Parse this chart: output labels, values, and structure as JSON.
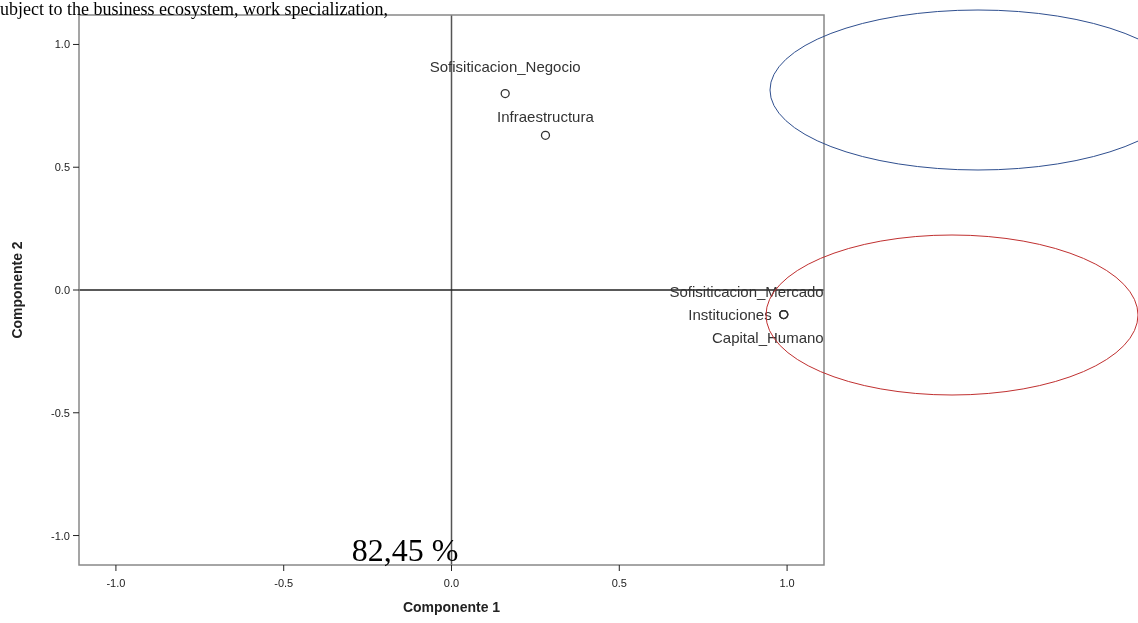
{
  "chart_data": {
    "type": "scatter",
    "xlabel": "Componente 1",
    "ylabel": "Componente 2",
    "xlim": [
      -1.11,
      1.11
    ],
    "ylim": [
      -1.12,
      1.12
    ],
    "xticks": [
      {
        "value": -1,
        "label": "-1.0"
      },
      {
        "value": -0.5,
        "label": "-0.5"
      },
      {
        "value": 0,
        "label": "0.0"
      },
      {
        "value": 0.5,
        "label": "0.5"
      },
      {
        "value": 1,
        "label": "1.0"
      }
    ],
    "yticks": [
      {
        "value": -1,
        "label": "-1.0"
      },
      {
        "value": -0.5,
        "label": "-0.5"
      },
      {
        "value": 0,
        "label": "0.0"
      },
      {
        "value": 0.5,
        "label": "0.5"
      },
      {
        "value": 1,
        "label": "1.0"
      }
    ],
    "series": [
      {
        "color": "#333333",
        "x": [
          0.16,
          0.28,
          0.99,
          0.99,
          0.99
        ],
        "values": [
          0.8,
          0.63,
          -0.1,
          -0.1,
          -0.1
        ]
      }
    ],
    "marker": "circle",
    "grid": false,
    "ref_lines": [
      {
        "axis": "x",
        "value": 0,
        "color": "#555555"
      },
      {
        "axis": "y",
        "value": 0,
        "color": "#222222"
      }
    ],
    "annotations": [
      "ubject to the business ecosystem, work specialization,",
      "82,45 %",
      {
        "text": "Sofisiticacion_Negocio",
        "x": 0.16,
        "y": 0.8
      },
      {
        "text": "Infraestructura",
        "x": 0.28,
        "y": 0.63
      },
      {
        "text": "Sofisiticacion_Mercado",
        "x": 0.99,
        "y": -0.1
      },
      {
        "text": "Instituciones",
        "x": 0.99,
        "y": -0.1
      },
      {
        "text": "Capital_Humano",
        "x": 0.99,
        "y": -0.1
      }
    ]
  }
}
